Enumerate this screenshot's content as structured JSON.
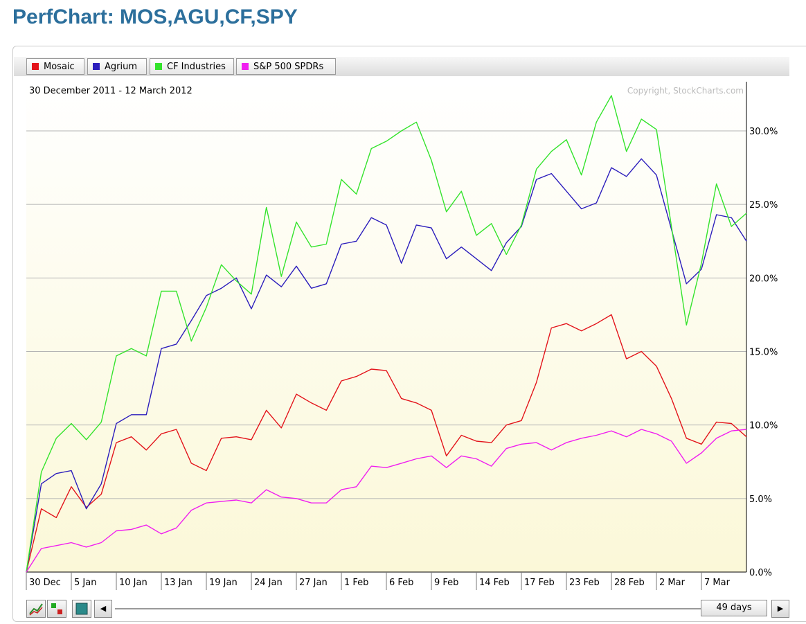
{
  "page": {
    "title": "PerfChart: MOS,AGU,CF,SPY"
  },
  "legend": [
    {
      "label": "Mosaic",
      "color": "#e3141b"
    },
    {
      "label": "Agrium",
      "color": "#2b1dbc"
    },
    {
      "label": "CF Industries",
      "color": "#34e32c"
    },
    {
      "label": "S&P 500 SPDRs",
      "color": "#f01ef0"
    }
  ],
  "chart_data": {
    "type": "line",
    "date_range": "30 December 2011 - 12 March 2012",
    "copyright": "Copyright, StockCharts.com",
    "ylim": [
      0,
      33
    ],
    "y_ticks": [
      0,
      5,
      10,
      15,
      20,
      25,
      30
    ],
    "y_tick_labels": [
      "0.0%",
      "5.0%",
      "10.0%",
      "15.0%",
      "20.0%",
      "25.0%",
      "30.0%"
    ],
    "x_tick_labels": [
      {
        "label": "30 Dec",
        "index": 0
      },
      {
        "label": "5 Jan",
        "index": 3
      },
      {
        "label": "10 Jan",
        "index": 6
      },
      {
        "label": "13 Jan",
        "index": 9
      },
      {
        "label": "19 Jan",
        "index": 12
      },
      {
        "label": "24 Jan",
        "index": 15
      },
      {
        "label": "27 Jan",
        "index": 18
      },
      {
        "label": "1 Feb",
        "index": 21
      },
      {
        "label": "6 Feb",
        "index": 24
      },
      {
        "label": "9 Feb",
        "index": 27
      },
      {
        "label": "14 Feb",
        "index": 30
      },
      {
        "label": "17 Feb",
        "index": 33
      },
      {
        "label": "23 Feb",
        "index": 36
      },
      {
        "label": "28 Feb",
        "index": 39
      },
      {
        "label": "2 Mar",
        "index": 42
      },
      {
        "label": "7 Mar",
        "index": 45
      }
    ],
    "grid": true,
    "legend_position": "top-left",
    "series": [
      {
        "name": "Mosaic",
        "color": "#e3141b",
        "values": [
          0,
          4.3,
          3.7,
          5.8,
          4.4,
          5.3,
          8.8,
          9.2,
          8.3,
          9.4,
          9.7,
          7.4,
          6.9,
          9.1,
          9.2,
          9.0,
          11.0,
          9.8,
          12.1,
          11.5,
          11.0,
          13.0,
          13.3,
          13.8,
          13.7,
          11.8,
          11.5,
          11.0,
          7.9,
          9.3,
          8.9,
          8.8,
          10.0,
          10.3,
          12.9,
          16.6,
          16.9,
          16.4,
          16.9,
          17.5,
          14.5,
          15.0,
          14.0,
          11.8,
          9.1,
          8.7,
          10.2,
          10.1,
          9.2
        ]
      },
      {
        "name": "Agrium",
        "color": "#2b1dbc",
        "values": [
          0,
          6.0,
          6.7,
          6.9,
          4.3,
          6.0,
          10.1,
          10.7,
          10.7,
          15.2,
          15.5,
          17.1,
          18.8,
          19.3,
          20.0,
          17.9,
          20.2,
          19.4,
          20.8,
          19.3,
          19.6,
          22.3,
          22.5,
          24.1,
          23.6,
          21.0,
          23.6,
          23.4,
          21.3,
          22.1,
          21.3,
          20.5,
          22.4,
          23.5,
          26.7,
          27.1,
          25.9,
          24.7,
          25.1,
          27.5,
          26.9,
          28.1,
          27.0,
          23.3,
          19.6,
          20.6,
          24.3,
          24.1,
          22.5
        ]
      },
      {
        "name": "CF Industries",
        "color": "#34e32c",
        "values": [
          0,
          6.8,
          9.1,
          10.1,
          9.0,
          10.2,
          14.7,
          15.2,
          14.7,
          19.1,
          19.1,
          15.7,
          18.0,
          20.9,
          19.8,
          18.9,
          24.8,
          20.1,
          23.8,
          22.1,
          22.3,
          26.7,
          25.7,
          28.8,
          29.3,
          30.0,
          30.6,
          28.0,
          24.5,
          25.9,
          22.9,
          23.7,
          21.6,
          23.6,
          27.4,
          28.6,
          29.4,
          27.0,
          30.6,
          32.4,
          28.6,
          30.8,
          30.1,
          23.5,
          16.8,
          21.0,
          26.4,
          23.5,
          24.4
        ]
      },
      {
        "name": "S&P 500 SPDRs",
        "color": "#f01ef0",
        "values": [
          0,
          1.6,
          1.8,
          2.0,
          1.7,
          2.0,
          2.8,
          2.9,
          3.2,
          2.6,
          3.0,
          4.2,
          4.7,
          4.8,
          4.9,
          4.7,
          5.6,
          5.1,
          5.0,
          4.7,
          4.7,
          5.6,
          5.8,
          7.2,
          7.1,
          7.4,
          7.7,
          7.9,
          7.1,
          7.9,
          7.7,
          7.2,
          8.4,
          8.7,
          8.8,
          8.3,
          8.8,
          9.1,
          9.3,
          9.6,
          9.2,
          9.7,
          9.4,
          8.9,
          7.4,
          8.1,
          9.1,
          9.6,
          9.7
        ]
      }
    ]
  },
  "controls": {
    "days_label": "49 days",
    "left_arrow": "◀",
    "right_arrow": "▶"
  }
}
